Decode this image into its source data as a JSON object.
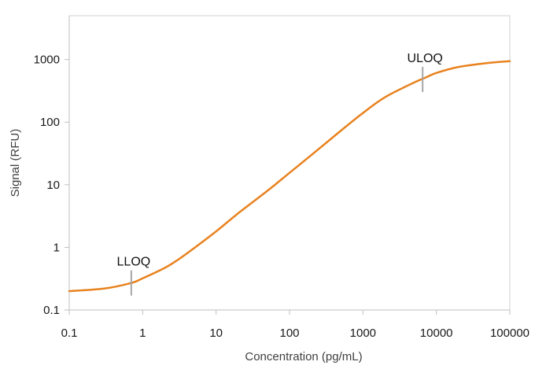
{
  "chart_data": {
    "type": "line",
    "xlabel": "Concentration (pg/mL)",
    "ylabel": "Signal (RFU)",
    "x_scale": "log",
    "y_scale": "log",
    "xlim": [
      0.1,
      100000
    ],
    "ylim": [
      0.1,
      5000
    ],
    "x_ticks": [
      "0.1",
      "1",
      "10",
      "100",
      "1000",
      "10000",
      "100000"
    ],
    "y_ticks": [
      "0.1",
      "1",
      "10",
      "100",
      "1000"
    ],
    "grid": false,
    "series": [
      {
        "color": "#E8821E",
        "x": [
          0.1,
          0.3,
          0.7,
          1,
          2,
          3,
          5,
          10,
          20,
          50,
          100,
          200,
          500,
          1000,
          2000,
          5000,
          7000,
          10000,
          20000,
          50000,
          100000
        ],
        "y": [
          0.2,
          0.22,
          0.27,
          0.32,
          0.47,
          0.63,
          0.97,
          1.8,
          3.5,
          8,
          15.5,
          30,
          73,
          140,
          250,
          430,
          510,
          610,
          760,
          880,
          940
        ]
      }
    ],
    "annotations": [
      {
        "text": "LLOQ",
        "x": 0.7,
        "y": 0.27
      },
      {
        "text": "ULOQ",
        "x": 6500,
        "y": 480
      }
    ]
  }
}
